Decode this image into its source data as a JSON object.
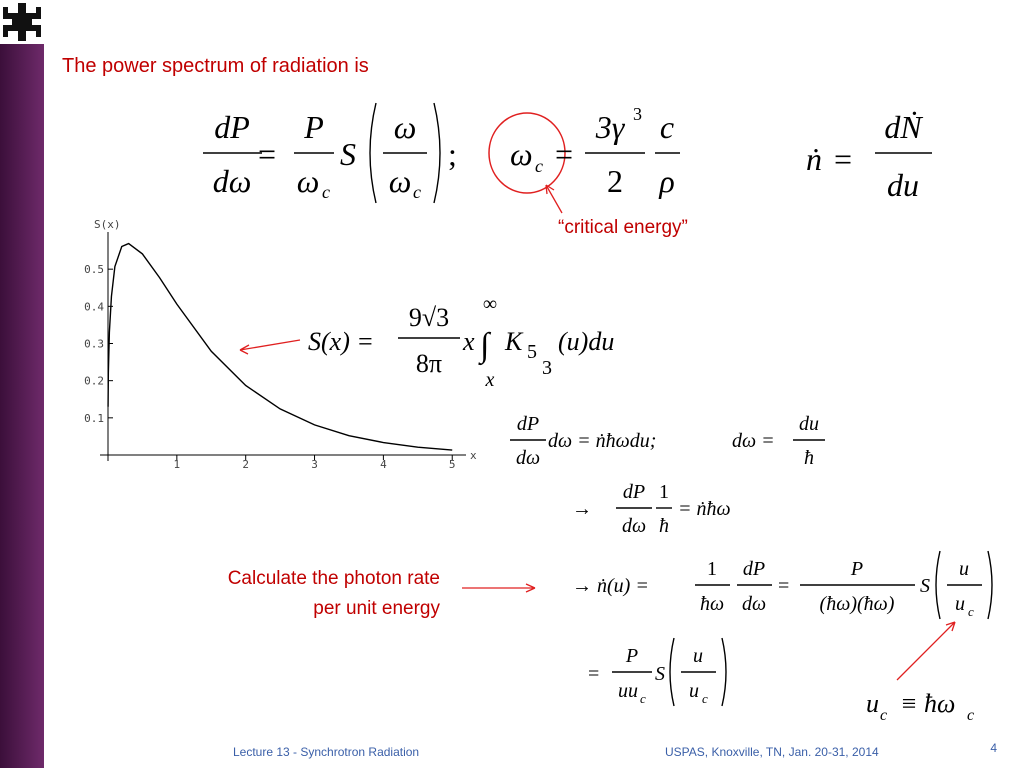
{
  "title": "The power spectrum of radiation is",
  "equations": {
    "power": [
      "dP",
      "dω",
      "=",
      "P",
      "ω",
      "c",
      "S",
      "ω",
      "ω",
      "c",
      ";"
    ],
    "critical": [
      "ω",
      "c",
      "=",
      "3γ",
      "3",
      "2",
      "c",
      "ρ"
    ],
    "rate": [
      "ṅ",
      "=",
      "dṄ",
      "du"
    ],
    "sx": [
      "S(x) =",
      "9√3",
      "8π",
      "x",
      "∫",
      "∞",
      "x",
      "K",
      "5",
      "3",
      "(u)du"
    ],
    "step1": [
      "dP",
      "dω",
      "dω = ṅħωdu;",
      "dω =",
      "du",
      "ħ"
    ],
    "step2": [
      "→",
      "dP",
      "dω",
      "1",
      "ħ",
      "= ṅħω"
    ],
    "step3": [
      "→ ṅ(u) =",
      "1",
      "ħω",
      "dP",
      "dω",
      "=",
      "P",
      "(ħω)(ħω)",
      "S",
      "u",
      "u",
      "c"
    ],
    "step4": [
      "=",
      "P",
      "uu",
      "c",
      "S",
      "u",
      "u",
      "c"
    ],
    "uc": [
      "u",
      "c",
      "≡ ħω",
      "c"
    ]
  },
  "annotation": "“critical energy”",
  "side_note": [
    "Calculate the photon rate",
    "per unit energy"
  ],
  "footer": {
    "left": "Lecture 13 - Synchrotron Radiation",
    "right": "USPAS, Knoxville, TN, Jan. 20-31, 2014",
    "page": "4"
  },
  "plot": {
    "type": "line",
    "ylabel": "S(x)",
    "xlabel": "x",
    "x": [
      0.001,
      0.005,
      0.02,
      0.05,
      0.1,
      0.2,
      0.3,
      0.5,
      0.75,
      1,
      1.5,
      2,
      2.5,
      3,
      3.5,
      4,
      4.5,
      5
    ],
    "values": [
      0.13,
      0.22,
      0.33,
      0.427,
      0.507,
      0.561,
      0.569,
      0.541,
      0.477,
      0.406,
      0.279,
      0.187,
      0.124,
      0.081,
      0.052,
      0.0336,
      0.021,
      0.0133
    ],
    "xlim": [
      0,
      5.2
    ],
    "ylim": [
      0,
      0.6
    ],
    "xticks": [
      1,
      2,
      3,
      4,
      5
    ],
    "yticks": [
      0.1,
      0.2,
      0.3,
      0.4,
      0.5
    ],
    "color": "#000000"
  }
}
